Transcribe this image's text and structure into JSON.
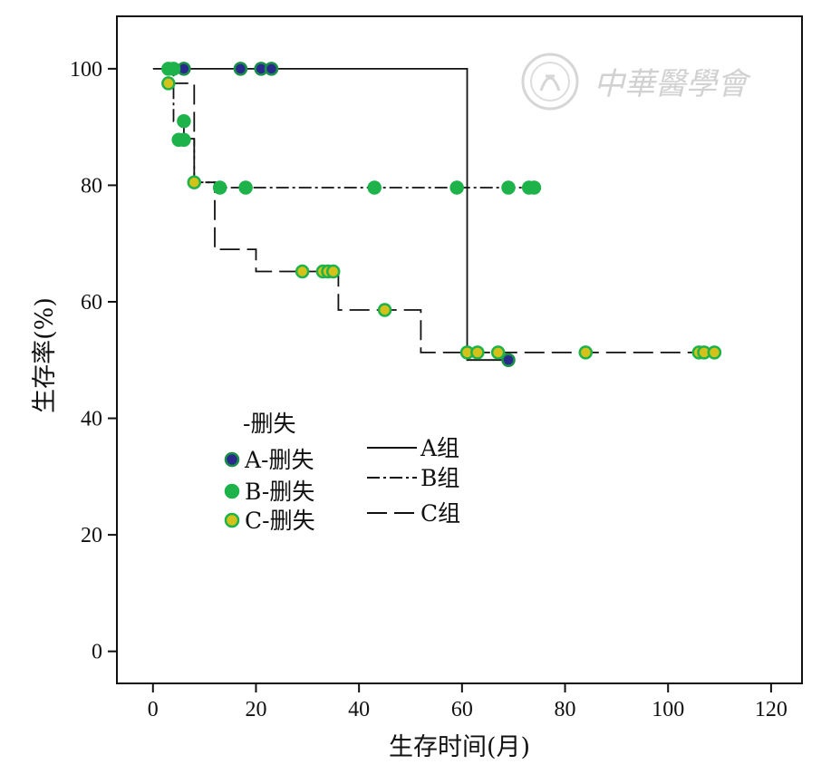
{
  "chart_data": {
    "type": "line",
    "subtype": "kaplan-meier",
    "xlabel": "生存时间(月)",
    "ylabel": "生存率(%)",
    "xlim": [
      -7,
      126
    ],
    "ylim": [
      -5.5,
      109
    ],
    "xticks": [
      0,
      20,
      40,
      60,
      80,
      100,
      120
    ],
    "yticks": [
      0,
      20,
      40,
      60,
      80,
      100
    ],
    "grid": false,
    "legend_position": "bottom-left",
    "censor_legend_title": "-删失",
    "series": [
      {
        "name": "A组",
        "censor_label": "A-删失",
        "line_style": "solid",
        "marker_color": "#2a2a8c",
        "marker_edge": "#1a8f4a",
        "steps": [
          [
            0,
            100
          ],
          [
            61,
            100
          ],
          [
            61,
            50
          ],
          [
            69,
            50
          ]
        ],
        "censored": [
          [
            6,
            100
          ],
          [
            17,
            100
          ],
          [
            21,
            100
          ],
          [
            23,
            100
          ],
          [
            69,
            50
          ]
        ]
      },
      {
        "name": "B组",
        "censor_label": "B-删失",
        "line_style": "dashdot",
        "marker_color": "#1db34a",
        "marker_edge": "#1db34a",
        "steps": [
          [
            3,
            100
          ],
          [
            4,
            100
          ],
          [
            4,
            91
          ],
          [
            6,
            91
          ],
          [
            6,
            88
          ],
          [
            8,
            88
          ],
          [
            8,
            80.5
          ],
          [
            13,
            80.5
          ],
          [
            13,
            79.6
          ],
          [
            74,
            79.6
          ]
        ],
        "censored": [
          [
            3,
            100
          ],
          [
            4,
            100
          ],
          [
            6,
            91
          ],
          [
            5,
            87.8
          ],
          [
            6,
            87.8
          ],
          [
            13,
            79.6
          ],
          [
            18,
            79.6
          ],
          [
            43,
            79.6
          ],
          [
            59,
            79.6
          ],
          [
            69,
            79.6
          ],
          [
            73,
            79.6
          ],
          [
            74,
            79.6
          ]
        ]
      },
      {
        "name": "C组",
        "censor_label": "C-删失",
        "line_style": "dashed",
        "marker_color": "#d4c21a",
        "marker_edge": "#1db34a",
        "steps": [
          [
            3,
            97.5
          ],
          [
            8,
            97.5
          ],
          [
            8,
            80.5
          ],
          [
            12,
            80.5
          ],
          [
            12,
            69
          ],
          [
            20,
            69
          ],
          [
            20,
            65.2
          ],
          [
            36,
            65.2
          ],
          [
            36,
            58.6
          ],
          [
            52,
            58.6
          ],
          [
            52,
            51.3
          ],
          [
            109,
            51.3
          ]
        ],
        "censored": [
          [
            3,
            97.5
          ],
          [
            8,
            80.5
          ],
          [
            29,
            65.2
          ],
          [
            33,
            65.2
          ],
          [
            34,
            65.2
          ],
          [
            35,
            65.2
          ],
          [
            45,
            58.6
          ],
          [
            61,
            51.3
          ],
          [
            63,
            51.3
          ],
          [
            67,
            51.3
          ],
          [
            84,
            51.3
          ],
          [
            106,
            51.3
          ],
          [
            107,
            51.3
          ],
          [
            109,
            51.3
          ]
        ]
      }
    ]
  },
  "watermark": {
    "text": "中華醫學會",
    "kind": "logo"
  },
  "colors": {
    "axis": "#111111",
    "line": "#111111"
  }
}
